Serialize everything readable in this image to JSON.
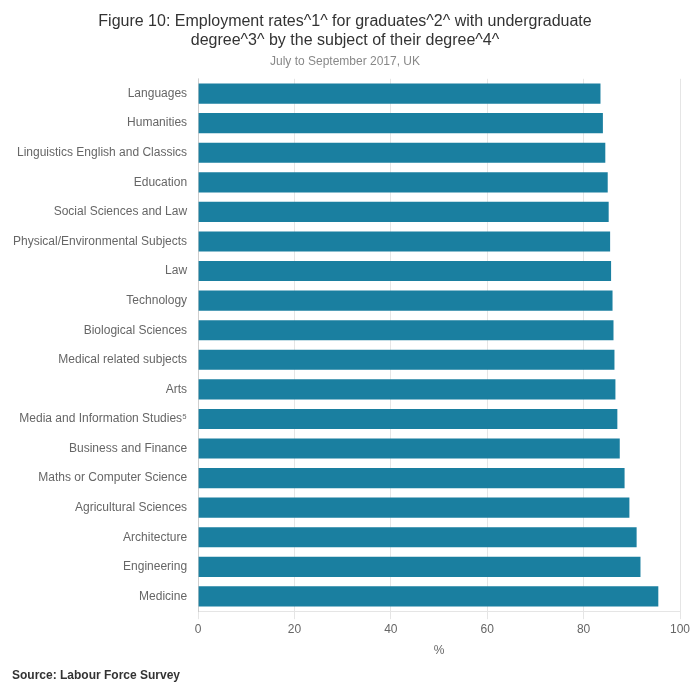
{
  "chart_data": {
    "type": "bar",
    "orientation": "horizontal",
    "title": [
      "Figure 10: Employment rates^1^ for graduates^2^ with undergraduate",
      "degree^3^ by the subject of their degree^4^"
    ],
    "subtitle": "July to September 2017, UK",
    "annotations": [
      "Source: Labour Force Survey"
    ],
    "categories": [
      "Languages",
      "Humanities",
      "Linguistics English and Classics",
      "Education",
      "Social Sciences and Law",
      "Physical/Environmental Subjects",
      "Law",
      "Technology",
      "Biological Sciences",
      "Medical related subjects",
      "Arts",
      "Media and Information Studies⁵",
      "Business and Finance",
      "Maths or Computer Science",
      "Agricultural Sciences",
      "Architecture",
      "Engineering",
      "Medicine"
    ],
    "values": [
      83.5,
      84.0,
      84.5,
      85.0,
      85.2,
      85.5,
      85.7,
      86.0,
      86.2,
      86.4,
      86.6,
      87.0,
      87.5,
      88.5,
      89.5,
      91.0,
      91.8,
      95.5
    ],
    "color": "#1a7fa0",
    "xlabel": "%",
    "xlim": [
      0,
      100
    ],
    "xticks": [
      0,
      20,
      40,
      60,
      80,
      100
    ],
    "grid": true
  }
}
